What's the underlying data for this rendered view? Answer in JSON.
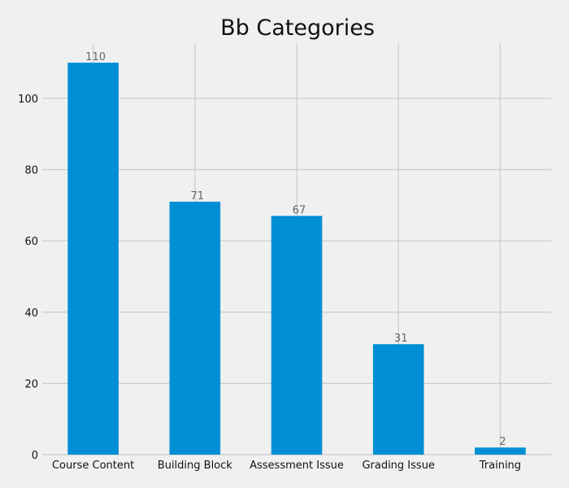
{
  "chart_data": {
    "type": "bar",
    "title": "Bb Categories",
    "xlabel": "",
    "ylabel": "",
    "categories": [
      "Course Content",
      "Building Block",
      "Assessment Issue",
      "Grading Issue",
      "Training"
    ],
    "values": [
      110,
      71,
      67,
      31,
      2
    ],
    "data_labels": [
      "110",
      "71",
      "67",
      "31",
      "2"
    ],
    "yticks": [
      0,
      20,
      40,
      60,
      80,
      100
    ],
    "ytick_labels": [
      "0",
      "20",
      "40",
      "60",
      "80",
      "100"
    ],
    "ylim": [
      0,
      115.5
    ],
    "grid": true,
    "bar_color": "#008fd5",
    "background_color": "#f0f0f0",
    "grid_color": "#cbcbcb"
  }
}
